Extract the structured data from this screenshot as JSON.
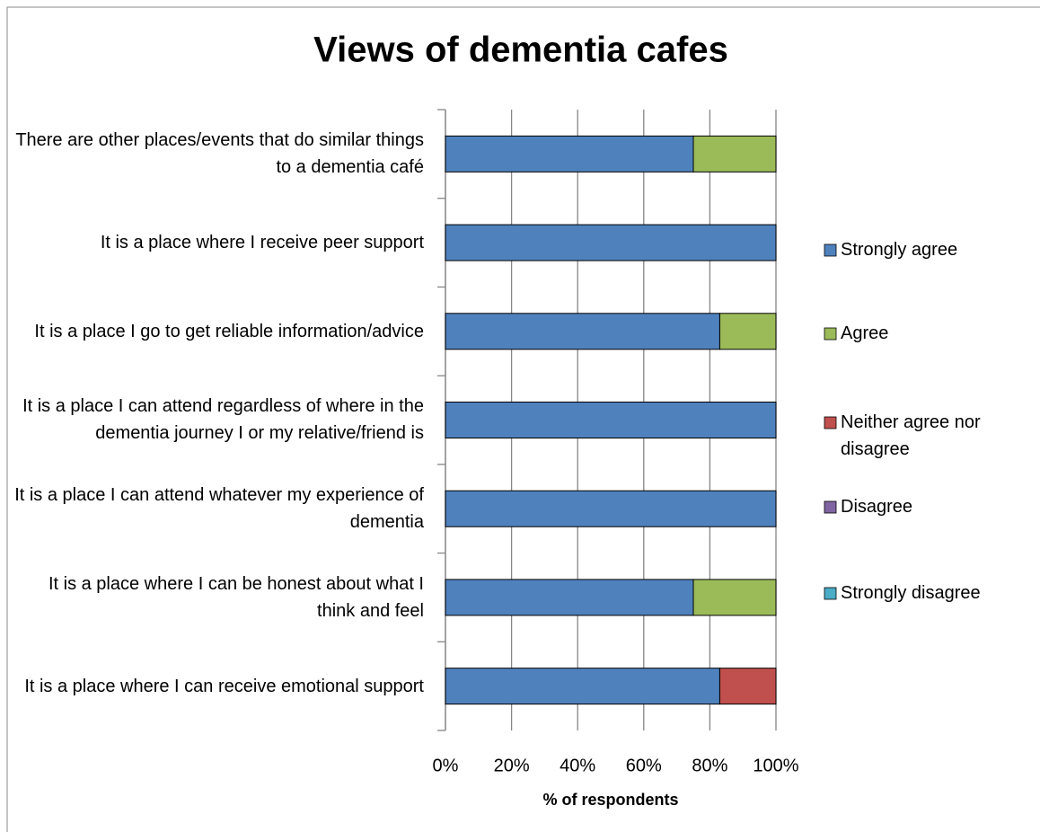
{
  "chart_data": {
    "type": "stacked_bar_horizontal",
    "title": "Views of dementia cafes",
    "x_label": "% of respondents",
    "categories": [
      "There are other places/events that do similar things to a dementia café",
      "It is a place where I receive peer support",
      "It is a place I go to get reliable information/advice",
      "It is a place I can attend regardless of where in the dementia journey I or my relative/friend is",
      "It is a place I can attend whatever my experience of dementia",
      "It is a place where I can be honest about what I think and feel",
      "It is a place where I can receive emotional support"
    ],
    "series": [
      {
        "name": "Strongly agree",
        "color": "#4f81bd",
        "values": [
          75,
          100,
          83,
          100,
          100,
          75,
          83
        ]
      },
      {
        "name": "Agree",
        "color": "#9bbb59",
        "values": [
          25,
          0,
          17,
          0,
          0,
          25,
          0
        ]
      },
      {
        "name": "Neither agree nor disagree",
        "color": "#c0504d",
        "values": [
          0,
          0,
          0,
          0,
          0,
          0,
          17
        ]
      },
      {
        "name": "Disagree",
        "color": "#8064a2",
        "values": [
          0,
          0,
          0,
          0,
          0,
          0,
          0
        ]
      },
      {
        "name": "Strongly disagree",
        "color": "#4bacc6",
        "values": [
          0,
          0,
          0,
          0,
          0,
          0,
          0
        ]
      }
    ],
    "xlim": [
      0,
      100
    ],
    "xticks": [
      {
        "value": 0,
        "label": "0%"
      },
      {
        "value": 20,
        "label": "20%"
      },
      {
        "value": 40,
        "label": "40%"
      },
      {
        "value": 60,
        "label": "60%"
      },
      {
        "value": 80,
        "label": "80%"
      },
      {
        "value": 100,
        "label": "100%"
      }
    ],
    "grid": true,
    "legend": "right"
  }
}
